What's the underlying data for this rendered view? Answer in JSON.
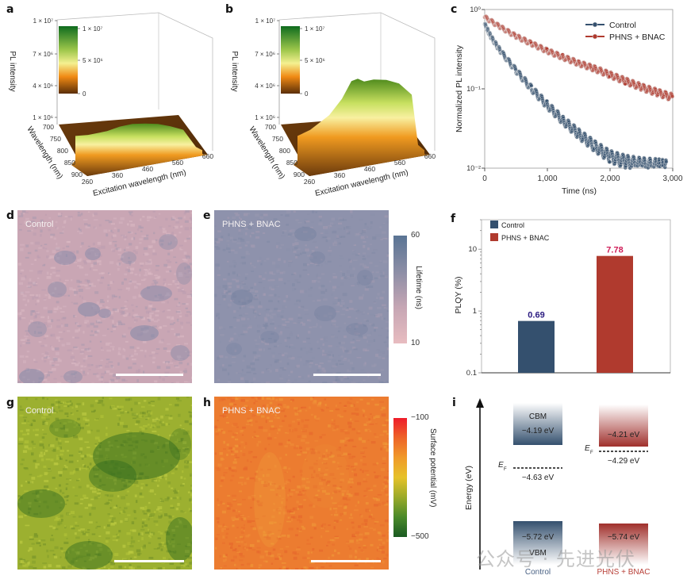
{
  "panels": {
    "a": "a",
    "b": "b",
    "c": "c",
    "d": "d",
    "e": "e",
    "f": "f",
    "g": "g",
    "h": "h",
    "i": "i"
  },
  "colors": {
    "control": "#34506e",
    "treated": "#b03a2e",
    "label_control": "#2a1a80",
    "label_treated": "#d0205a"
  },
  "chart_data": [
    {
      "id": "a",
      "type": "surface3d",
      "title": "",
      "zlabel": "PL intensity",
      "ylabel": "Wavelength (nm)",
      "xlabel": "Excitation wavelength (nm)",
      "z_ticks": [
        "1 × 10⁶",
        "4 × 10⁶",
        "7 × 10⁶",
        "1 × 10⁷"
      ],
      "y_ticks": [
        "700",
        "750",
        "800",
        "850",
        "900"
      ],
      "x_ticks": [
        "260",
        "360",
        "460",
        "560",
        "660"
      ],
      "colorbar": {
        "ticks": [
          "1 × 10⁷",
          "5 × 10⁶",
          "0"
        ]
      },
      "peak_profile_x": [
        260,
        300,
        360,
        400,
        440,
        480,
        520,
        560,
        600,
        640,
        660
      ],
      "peak_profile_z": [
        50000.0,
        300000.0,
        900000.0,
        1500000.0,
        1900000.0,
        2100000.0,
        2200000.0,
        2100000.0,
        1900000.0,
        300000.0,
        50000.0
      ]
    },
    {
      "id": "b",
      "type": "surface3d",
      "zlabel": "PL intensity",
      "ylabel": "Wavelength (nm)",
      "xlabel": "Excitation wavelength (nm)",
      "z_ticks": [
        "1 × 10⁶",
        "4 × 10⁶",
        "7 × 10⁶",
        "1 × 10⁷"
      ],
      "y_ticks": [
        "700",
        "750",
        "800",
        "850",
        "900"
      ],
      "x_ticks": [
        "260",
        "360",
        "460",
        "560",
        "660"
      ],
      "colorbar": {
        "ticks": [
          "1 × 10⁷",
          "5 × 10⁶",
          "0"
        ]
      },
      "peak_profile_x": [
        260,
        300,
        360,
        400,
        430,
        450,
        470,
        500,
        540,
        580,
        620,
        640,
        660
      ],
      "peak_profile_z": [
        50000.0,
        800000.0,
        2500000.0,
        4300000.0,
        6200000.0,
        6500000.0,
        6300000.0,
        6600000.0,
        6700000.0,
        6500000.0,
        5500000.0,
        500000.0,
        50000.0
      ]
    },
    {
      "id": "c",
      "type": "scatter",
      "xlabel": "Time (ns)",
      "ylabel": "Normalized PL intensity",
      "xlim": [
        0,
        3000
      ],
      "ylim": [
        0.01,
        1
      ],
      "yscale": "log",
      "x_ticks": [
        "0",
        "1,000",
        "2,000",
        "3,000"
      ],
      "y_ticks": [
        "10⁻²",
        "10⁻¹",
        "10⁰"
      ],
      "legend": "top-right",
      "series": [
        {
          "name": "Control",
          "color": "#34506e",
          "x": [
            0,
            100,
            250,
            500,
            750,
            1000,
            1250,
            1500,
            1750,
            2000,
            2250,
            2500,
            2750,
            2900
          ],
          "y": [
            0.65,
            0.45,
            0.3,
            0.17,
            0.1,
            0.062,
            0.04,
            0.027,
            0.019,
            0.014,
            0.012,
            0.011,
            0.0105,
            0.01
          ]
        },
        {
          "name": "PHNS + BNAC",
          "color": "#b03a2e",
          "x": [
            0,
            250,
            500,
            750,
            1000,
            1250,
            1500,
            1750,
            2000,
            2250,
            2500,
            2750,
            3000
          ],
          "y": [
            0.8,
            0.6,
            0.46,
            0.37,
            0.3,
            0.25,
            0.21,
            0.18,
            0.15,
            0.125,
            0.105,
            0.09,
            0.078
          ]
        }
      ]
    },
    {
      "id": "f",
      "type": "bar",
      "ylabel": "PLQY (%)",
      "yscale": "log",
      "ylim": [
        0.1,
        30
      ],
      "y_ticks": [
        "0.1",
        "1",
        "10"
      ],
      "legend": "top-left",
      "categories": [
        "Control",
        "PHNS + BNAC"
      ],
      "values": [
        0.69,
        7.78
      ],
      "data_labels": [
        "0.69",
        "7.78"
      ]
    },
    {
      "id": "i",
      "type": "energy-diagram",
      "ylabel": "Energy (eV)",
      "categories": [
        "Control",
        "PHNS + BNAC"
      ],
      "cbm": [
        -4.19,
        -4.21
      ],
      "vbm": [
        -5.72,
        -5.74
      ],
      "ef": [
        -4.63,
        -4.29
      ],
      "cbm_labels": [
        "−4.19 eV",
        "−4.21 eV"
      ],
      "vbm_labels": [
        "−5.72 eV",
        "−5.74 eV"
      ],
      "ef_labels": [
        "−4.63 eV",
        "−4.29 eV"
      ],
      "cbm_name": "CBM",
      "vbm_name": "VBM",
      "ef_name": "E",
      "ef_sub": "F"
    }
  ],
  "maps": {
    "d": {
      "label": "Control"
    },
    "e": {
      "label": "PHNS + BNAC"
    },
    "lifetime_cbar": {
      "title": "Lifetime (ns)",
      "max": "60",
      "min": "10"
    },
    "g": {
      "label": "Control"
    },
    "h": {
      "label": "PHNS + BNAC"
    },
    "potential_cbar": {
      "title": "Surface potential (mV)",
      "max": "−100",
      "min": "−500"
    }
  },
  "watermark": "公众号 · 先进光伏"
}
